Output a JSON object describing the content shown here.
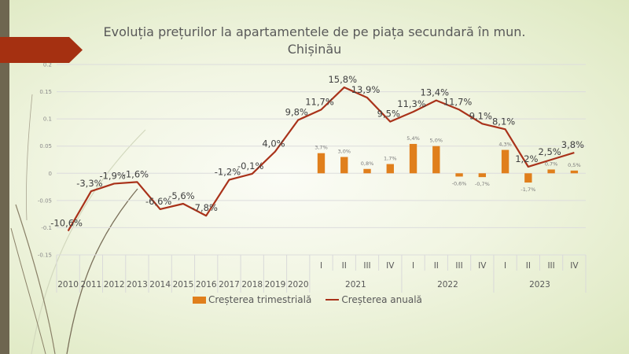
{
  "slide": {
    "title_line1": "Evoluția prețurilor la apartamentele  de pe piața secundară în mun.",
    "title_line2": "Chișinău"
  },
  "chart_data": {
    "type": "bar+line",
    "title": "Evoluția prețurilor la apartamentele  de pe piața secundară în mun. Chișinău",
    "xlabel": "",
    "ylabel": "",
    "ylim": [
      -0.15,
      0.2
    ],
    "yticks": [
      "0.2",
      "0.15",
      "0.1",
      "0.05",
      "0",
      "-0.05",
      "-0.1",
      "-0.15"
    ],
    "ytick_values": [
      0.2,
      0.15,
      0.1,
      0.05,
      0,
      -0.05,
      -0.1,
      -0.15
    ],
    "grid": true,
    "legend_position": "bottom",
    "categories": [
      "2010",
      "2011",
      "2012",
      "2013",
      "2014",
      "2015",
      "2016",
      "2017",
      "2018",
      "2019",
      "2020",
      "I",
      "II",
      "III",
      "IV",
      "I",
      "II",
      "III",
      "IV",
      "I",
      "II",
      "III",
      "IV"
    ],
    "year_groups": [
      {
        "label": "2021",
        "start": 11,
        "end": 14
      },
      {
        "label": "2022",
        "start": 15,
        "end": 18
      },
      {
        "label": "2023",
        "start": 19,
        "end": 22
      }
    ],
    "series": [
      {
        "name": "Creșterea trimestrială",
        "type": "bar",
        "color": "#e07f1c",
        "values": [
          null,
          null,
          null,
          null,
          null,
          null,
          null,
          null,
          null,
          null,
          null,
          0.037,
          0.03,
          0.008,
          0.017,
          0.054,
          0.05,
          -0.006,
          -0.007,
          0.043,
          -0.017,
          0.007,
          0.005
        ],
        "labels": [
          "",
          "",
          "",
          "",
          "",
          "",
          "",
          "",
          "",
          "",
          "",
          "3,7%",
          "3,0%",
          "0,8%",
          "1,7%",
          "5,4%",
          "5,0%",
          "-0,6%",
          "-0,7%",
          "4,3%",
          "-1,7%",
          "0,7%",
          "0,5%"
        ]
      },
      {
        "name": "Creșterea anuală",
        "type": "line",
        "color": "#a9321a",
        "values": [
          -0.106,
          -0.033,
          -0.019,
          -0.016,
          -0.066,
          -0.056,
          -0.078,
          -0.012,
          -0.001,
          0.04,
          0.098,
          0.117,
          0.158,
          0.139,
          0.095,
          0.113,
          0.134,
          0.117,
          0.091,
          0.081,
          0.012,
          0.025,
          0.038
        ],
        "labels": [
          "-10,6%",
          "-3,3%",
          "-1,9%",
          "-1,6%",
          "-6,6%",
          "-5,6%",
          "-7,8%",
          "-1,2%",
          "-0,1%",
          "4,0%",
          "9,8%",
          "11,7%",
          "15,8%",
          "13,9%",
          "9,5%",
          "11,3%",
          "13,4%",
          "11,7%",
          "9,1%",
          "8,1%",
          "1,2%",
          "2,5%",
          "3,8%"
        ]
      }
    ]
  }
}
